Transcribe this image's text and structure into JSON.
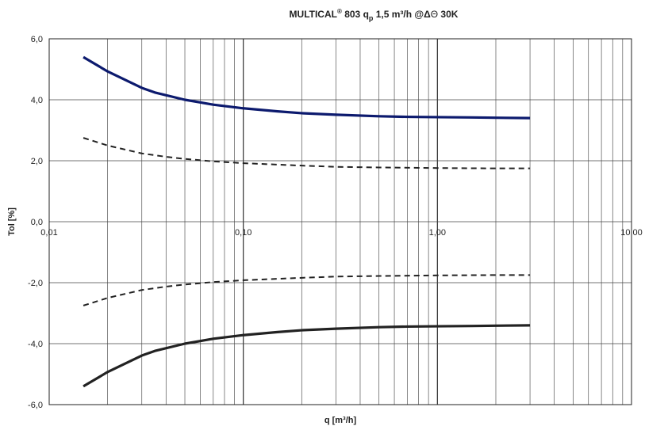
{
  "chart_data": {
    "type": "line",
    "title": {
      "prefix": "MULTICAL",
      "reg": "®",
      "part1": " 803 q",
      "sub": "p",
      "part2": " 1,5 m³/h @",
      "delta": "Δ",
      "theta": "Θ",
      "suffix": " 30K"
    },
    "xlabel": "q [m³/h]",
    "ylabel": "Tol [%]",
    "x_scale": "log",
    "xlim": [
      0.01,
      10
    ],
    "ylim": [
      -6,
      6
    ],
    "x_tick_labels": [
      "0,01",
      "0,10",
      "1,00",
      "10,00"
    ],
    "y_tick_labels": [
      "-6,0",
      "-4,0",
      "-2,0",
      "0,0",
      "2,0",
      "4,0",
      "6,0"
    ],
    "y_tick_values": [
      -6,
      -4,
      -2,
      0,
      2,
      4,
      6
    ],
    "grid": true,
    "legend": "none",
    "series": [
      {
        "style": "solid",
        "color": "#0c1a6e",
        "points": [
          [
            0.015,
            5.4
          ],
          [
            0.02,
            4.93
          ],
          [
            0.03,
            4.39
          ],
          [
            0.035,
            4.24
          ],
          [
            0.05,
            4.0
          ],
          [
            0.07,
            3.84
          ],
          [
            0.1,
            3.72
          ],
          [
            0.15,
            3.62
          ],
          [
            0.2,
            3.56
          ],
          [
            0.3,
            3.51
          ],
          [
            0.5,
            3.46
          ],
          [
            0.7,
            3.44
          ],
          [
            1.0,
            3.43
          ],
          [
            1.5,
            3.42
          ],
          [
            2.0,
            3.41
          ],
          [
            3.0,
            3.4
          ]
        ]
      },
      {
        "style": "dashed",
        "color": "#222222",
        "points": [
          [
            0.015,
            2.75
          ],
          [
            0.02,
            2.5
          ],
          [
            0.03,
            2.24
          ],
          [
            0.04,
            2.13
          ],
          [
            0.05,
            2.06
          ],
          [
            0.07,
            1.98
          ],
          [
            0.1,
            1.92
          ],
          [
            0.2,
            1.84
          ],
          [
            0.3,
            1.8
          ],
          [
            0.5,
            1.78
          ],
          [
            1.0,
            1.76
          ],
          [
            2.0,
            1.75
          ],
          [
            3.0,
            1.75
          ]
        ]
      },
      {
        "style": "dashed",
        "color": "#222222",
        "points": [
          [
            0.015,
            -2.75
          ],
          [
            0.02,
            -2.5
          ],
          [
            0.03,
            -2.24
          ],
          [
            0.04,
            -2.13
          ],
          [
            0.05,
            -2.06
          ],
          [
            0.07,
            -1.98
          ],
          [
            0.1,
            -1.92
          ],
          [
            0.2,
            -1.84
          ],
          [
            0.3,
            -1.8
          ],
          [
            0.5,
            -1.78
          ],
          [
            1.0,
            -1.76
          ],
          [
            2.0,
            -1.75
          ],
          [
            3.0,
            -1.75
          ]
        ]
      },
      {
        "style": "solid",
        "color": "#222222",
        "points": [
          [
            0.015,
            -5.4
          ],
          [
            0.02,
            -4.93
          ],
          [
            0.03,
            -4.39
          ],
          [
            0.035,
            -4.24
          ],
          [
            0.05,
            -4.0
          ],
          [
            0.07,
            -3.84
          ],
          [
            0.1,
            -3.72
          ],
          [
            0.15,
            -3.62
          ],
          [
            0.2,
            -3.56
          ],
          [
            0.3,
            -3.51
          ],
          [
            0.5,
            -3.46
          ],
          [
            0.7,
            -3.44
          ],
          [
            1.0,
            -3.43
          ],
          [
            1.5,
            -3.42
          ],
          [
            2.0,
            -3.41
          ],
          [
            3.0,
            -3.4
          ]
        ]
      }
    ]
  }
}
